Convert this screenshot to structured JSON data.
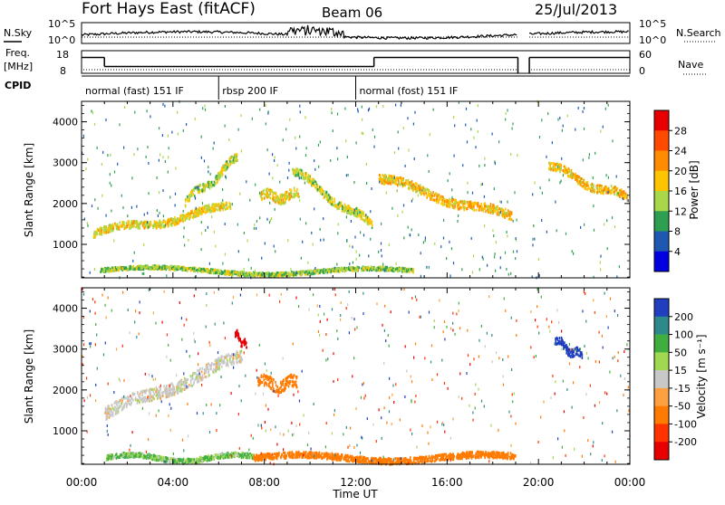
{
  "header": {
    "site": "Fort Hays East (fitACF)",
    "beam": "Beam 06",
    "date": "25/Jul/2013"
  },
  "noise_panel": {
    "left_label": "N.Sky",
    "right_label": "N.Search",
    "left_ticks": [
      "10^5",
      "10^0"
    ],
    "right_ticks": [
      "10^5",
      "10^0"
    ]
  },
  "freq_panel": {
    "left_label_1": "Freq.",
    "left_label_2": "[MHz]",
    "left_ticks": [
      "18",
      "8"
    ],
    "right_label": "Nave",
    "right_ticks": [
      "60",
      "0"
    ]
  },
  "cpid": {
    "label": "CPID",
    "segments": [
      {
        "text": "normal (fast) 151 IF",
        "start_h": 0,
        "end_h": 6
      },
      {
        "text": "rbsp 200 IF",
        "start_h": 6,
        "end_h": 12
      },
      {
        "text": "normal (fost) 151 IF",
        "start_h": 12,
        "end_h": 24
      }
    ]
  },
  "power_panel": {
    "ylabel": "Slant Range [km]",
    "colorbar_label": "Power [dB]",
    "colorbar_ticks": [
      "28",
      "24",
      "20",
      "16",
      "12",
      "8",
      "4"
    ],
    "colorbar_colors": [
      "#e80000",
      "#ff4a00",
      "#ff8c00",
      "#ffc400",
      "#a8d84a",
      "#2e9e50",
      "#1f58b0",
      "#0000e0"
    ]
  },
  "velocity_panel": {
    "ylabel": "Slant Range [km]",
    "colorbar_label": "Velocity [m s⁻¹]",
    "colorbar_ticks": [
      "200",
      "100",
      "50",
      "15",
      "-15",
      "-50",
      "-100",
      "-200"
    ],
    "colorbar_colors": [
      "#1f3fbf",
      "#2e8a8a",
      "#3fae3f",
      "#a0d850",
      "#c8c8c8",
      "#ffa040",
      "#ff7a00",
      "#ff3300",
      "#e80000"
    ]
  },
  "xaxis": {
    "label": "Time UT",
    "ticks": [
      "00:00",
      "04:00",
      "08:00",
      "12:00",
      "16:00",
      "20:00",
      "00:00"
    ]
  },
  "chart_data": {
    "type": "heatmap",
    "title": "Fort Hays East (fitACF)",
    "xlabel": "Time UT",
    "ylabel": "Slant Range [km]",
    "xlim_hours": [
      0,
      24
    ],
    "ylim_km": [
      180,
      4500
    ],
    "yticks_km": [
      1000,
      2000,
      3000,
      4000
    ],
    "data_gap_hours": [
      [
        19.1,
        19.6
      ]
    ],
    "power_range_db": [
      0,
      30
    ],
    "velocity_range_ms": [
      -250,
      250
    ],
    "noise_sky_range": [
      1,
      100000
    ],
    "freq_levels_mhz": [
      {
        "start_h": 0,
        "end_h": 1,
        "value": 15
      },
      {
        "start_h": 1,
        "end_h": 12.8,
        "value": 11
      },
      {
        "start_h": 12.8,
        "end_h": 19.1,
        "value": 15
      },
      {
        "start_h": 19.6,
        "end_h": 24,
        "value": 15
      }
    ],
    "power_features": [
      {
        "name": "band_low",
        "start_h": 0.5,
        "end_h": 6.5,
        "range_start": 1250,
        "range_end": 1900,
        "width": 180,
        "power": 16
      },
      {
        "name": "band_rising",
        "start_h": 4.5,
        "end_h": 6.8,
        "range_start": 2000,
        "range_end": 3100,
        "width": 200,
        "power": 14
      },
      {
        "name": "band_morning",
        "start_h": 7.8,
        "end_h": 9.5,
        "range_start": 2150,
        "range_end": 2200,
        "width": 250,
        "power": 16
      },
      {
        "name": "band_descend",
        "start_h": 9.2,
        "end_h": 12.7,
        "range_start": 2800,
        "range_end": 1450,
        "width": 200,
        "power": 14
      },
      {
        "name": "band_afternoon",
        "start_h": 13.0,
        "end_h": 18.8,
        "range_start": 2600,
        "range_end": 1650,
        "width": 220,
        "power": 18
      },
      {
        "name": "band_evening",
        "start_h": 20.4,
        "end_h": 23.9,
        "range_start": 2900,
        "range_end": 2100,
        "width": 200,
        "power": 18
      },
      {
        "name": "ground_low",
        "start_h": 0.8,
        "end_h": 14.5,
        "range_start": 360,
        "range_end": 320,
        "width": 90,
        "power": 12
      }
    ],
    "velocity_features": [
      {
        "name": "grey_band",
        "start_h": 1.0,
        "end_h": 7.0,
        "range_start": 1400,
        "range_end": 2800,
        "width": 300,
        "velocity": 0
      },
      {
        "name": "orange_patch",
        "start_h": 7.7,
        "end_h": 9.4,
        "range_start": 2150,
        "range_end": 2150,
        "width": 300,
        "velocity": -80
      },
      {
        "name": "red_patch",
        "start_h": 6.7,
        "end_h": 7.2,
        "range_start": 3350,
        "range_end": 3050,
        "width": 150,
        "velocity": -200
      },
      {
        "name": "blue_patch",
        "start_h": 20.7,
        "end_h": 21.9,
        "range_start": 3200,
        "range_end": 2800,
        "width": 200,
        "velocity": 180
      },
      {
        "name": "ground_green",
        "start_h": 1.0,
        "end_h": 7.5,
        "range_start": 330,
        "range_end": 330,
        "width": 120,
        "velocity": 30
      },
      {
        "name": "ground_orange",
        "start_h": 7.5,
        "end_h": 19.0,
        "range_start": 330,
        "range_end": 330,
        "width": 150,
        "velocity": -70
      }
    ]
  }
}
